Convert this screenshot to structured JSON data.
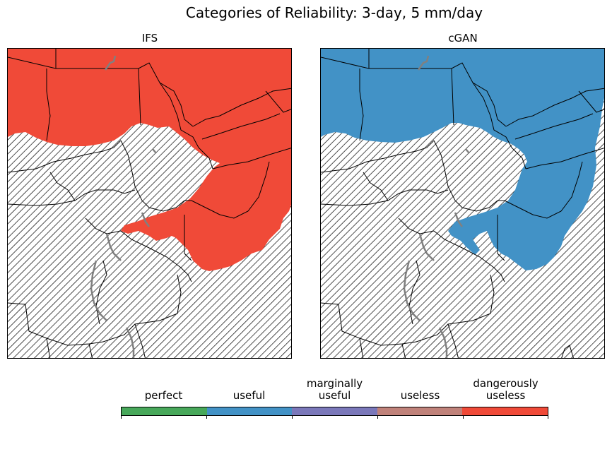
{
  "title": "Categories of Reliability: 3-day, 5 mm/day",
  "panels": [
    {
      "title": "IFS",
      "fill_category": "dangerously useless"
    },
    {
      "title": "cGAN",
      "fill_category": "useful"
    }
  ],
  "legend": {
    "categories": [
      {
        "label": "perfect",
        "color": "#47a85a"
      },
      {
        "label": "useful",
        "color": "#4292c6"
      },
      {
        "label": "marginally\nuseful",
        "color": "#7b78ba"
      },
      {
        "label": "useless",
        "color": "#c0827a"
      },
      {
        "label": "dangerously\nuseless",
        "color": "#f04a38"
      }
    ]
  },
  "colors": {
    "borders": "#000000",
    "lakes": "#808080",
    "hatch": "#000000"
  }
}
